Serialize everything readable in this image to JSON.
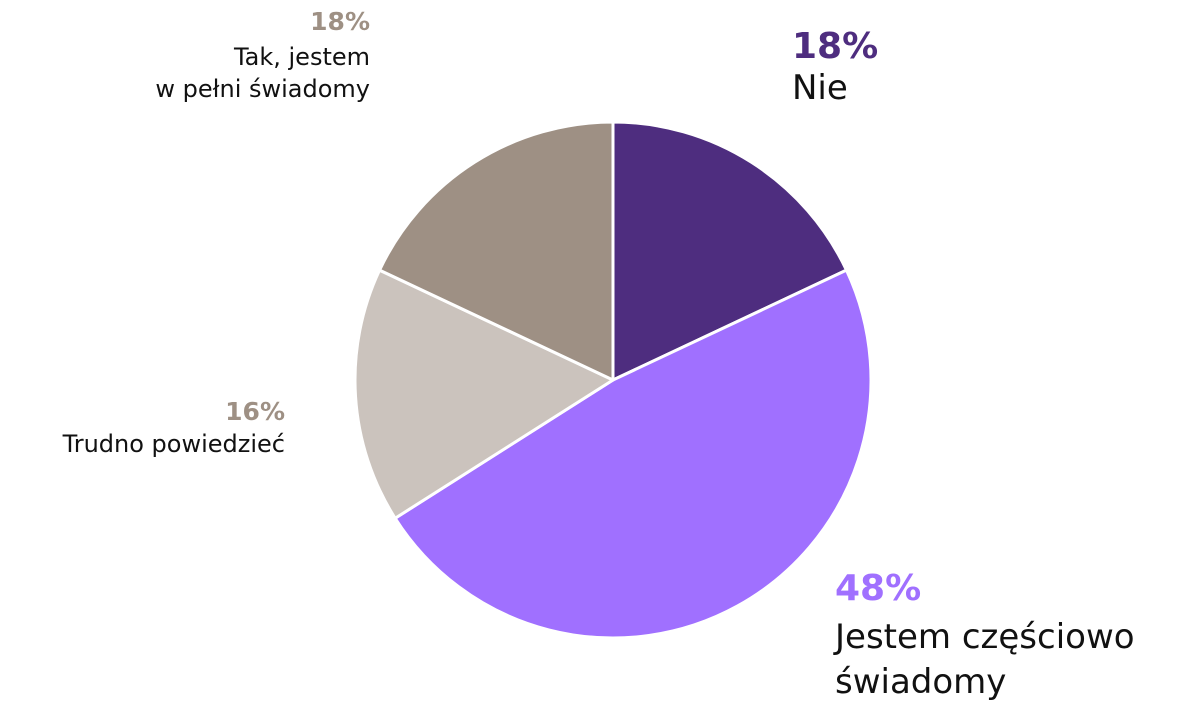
{
  "chart_data": {
    "type": "pie",
    "title": "",
    "slices": [
      {
        "label": "Nie",
        "value": 18,
        "value_label": "18%",
        "color": "#4e2d7f",
        "label_color": "#4e2d7f"
      },
      {
        "label": "Jestem częściowo\nświadomy",
        "value": 48,
        "value_label": "48%",
        "color": "#a070ff",
        "label_color": "#a070ff"
      },
      {
        "label": "Trudno powiedzieć",
        "value": 16,
        "value_label": "16%",
        "color": "#cbc3bd",
        "label_color": "#9e9084"
      },
      {
        "label": "Tak, jestem\nw pełni świadomy",
        "value": 18,
        "value_label": "18%",
        "color": "#9e9084",
        "label_color": "#9e9084"
      }
    ],
    "start_angle": "12 o'clock",
    "direction": "clockwise",
    "legend": "none"
  }
}
